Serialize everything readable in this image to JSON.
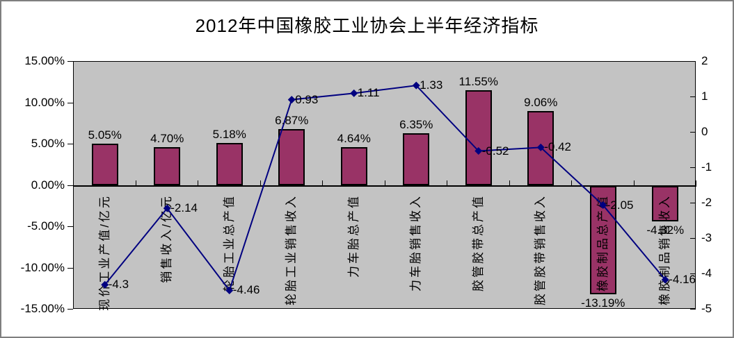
{
  "title": "2012年中国橡胶工业协会上半年经济指标",
  "colors": {
    "bar_fill": "#993366",
    "bar_border": "#000000",
    "line": "#000080",
    "plot_background": "#c3c3c3",
    "frame_border": "#7f7f7f",
    "axis": "#000000"
  },
  "chart_data": {
    "type": "combo-bar-line",
    "title": "2012年中国橡胶工业协会上半年经济指标",
    "categories": [
      "现价工业产值/亿元",
      "销售收入/亿元",
      "轮胎工业总产值",
      "轮胎工业销售收入",
      "力车胎总产值",
      "力车胎销售收入",
      "胶管胶带总产值",
      "胶管胶带销售收入",
      "橡胶制品总产值",
      "橡胶制品销售收入"
    ],
    "series": [
      {
        "type": "bar",
        "axis": "left",
        "values": [
          5.05,
          4.7,
          5.18,
          6.87,
          4.64,
          6.35,
          11.55,
          9.06,
          -13.19,
          -4.32
        ],
        "point_labels": [
          "5.05%",
          "4.70%",
          "5.18%",
          "6.87%",
          "4.64%",
          "6.35%",
          "11.55%",
          "9.06%",
          "-13.19%",
          "-4.32%"
        ]
      },
      {
        "type": "line",
        "axis": "right",
        "values": [
          -4.3,
          -2.14,
          -4.46,
          0.93,
          1.11,
          1.33,
          -0.52,
          -0.42,
          -2.05,
          -4.16
        ],
        "point_labels": [
          "-4.3",
          "-2.14",
          "-4.46",
          "0.93",
          "1.11",
          "1.33",
          "-0.52",
          "-0.42",
          "-2.05",
          "-4.16"
        ]
      }
    ],
    "left_axis": {
      "min": -15,
      "max": 15,
      "tick_labels": [
        "15.00%",
        "10.00%",
        "5.00%",
        "0.00%",
        "-5.00%",
        "-10.00%",
        "-15.00%"
      ]
    },
    "right_axis": {
      "min": -5,
      "max": 2,
      "tick_labels": [
        "2",
        "1",
        "0",
        "-1",
        "-2",
        "-3",
        "-4",
        "-5"
      ]
    },
    "legend_position": "none",
    "grid": false
  }
}
